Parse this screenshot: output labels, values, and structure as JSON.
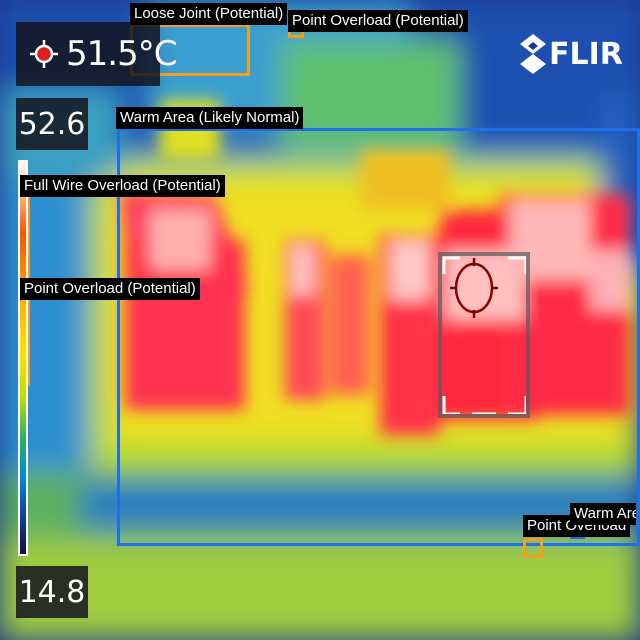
{
  "hud": {
    "spot_temperature": "51.5°C",
    "scale_max": "52.6",
    "scale_min": "14.8",
    "brand": "FLIR",
    "icons": {
      "spot_meter": "crosshair-icon",
      "brand_logo": "flir-logo-icon"
    }
  },
  "annotations": [
    {
      "label": "Loose Joint (Potential)",
      "color": "#f0a020"
    },
    {
      "label": "Point Overload (Potential)",
      "color": "#f0a020"
    },
    {
      "label": "Warm Area (Likely Normal)",
      "color": "#1f6fe8"
    },
    {
      "label": "Full Wire Overload (Potential)",
      "color": "#f0a020"
    },
    {
      "label": "Point Overload (Potential)",
      "color": "#f0a020"
    },
    {
      "label": "Point Overload",
      "color": "#f0a020"
    },
    {
      "label": "Warm Area",
      "color": "#1f6fe8"
    }
  ]
}
